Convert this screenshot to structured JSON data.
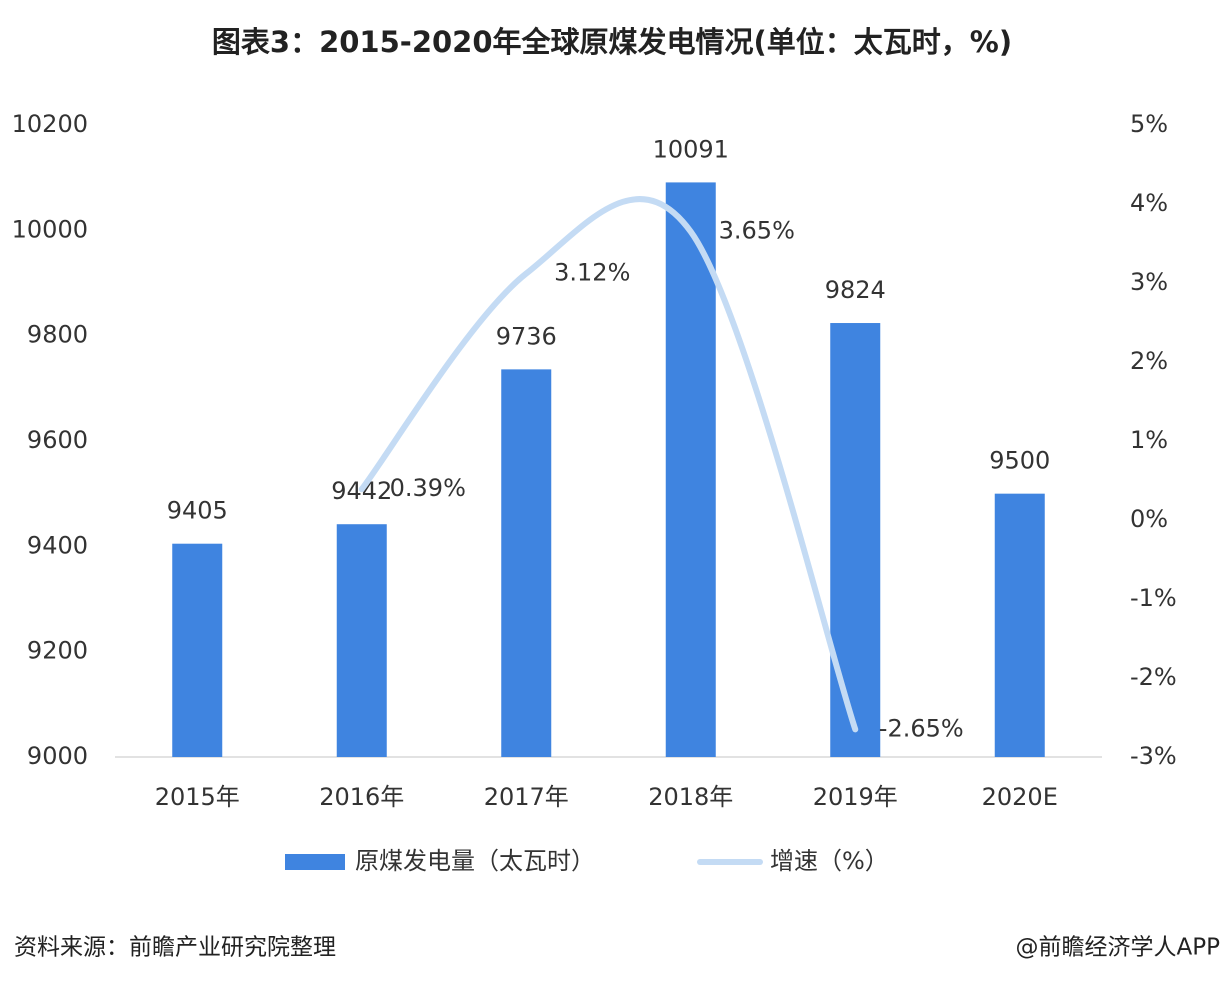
{
  "chart_data": {
    "type": "bar",
    "title": "图表3：2015-2020年全球原煤发电情况(单位：太瓦时，%)",
    "categories": [
      "2015年",
      "2016年",
      "2017年",
      "2018年",
      "2019年",
      "2020E"
    ],
    "series": [
      {
        "name": "原煤发电量（太瓦时）",
        "type": "bar",
        "color": "#3f84e0",
        "values": [
          9405,
          9442,
          9736,
          10091,
          9824,
          9500
        ]
      },
      {
        "name": "增速（%）",
        "type": "line",
        "axis": "y2",
        "color": "#c4dbf4",
        "values": [
          null,
          0.39,
          3.12,
          3.65,
          -2.65,
          null
        ],
        "value_labels": [
          null,
          "0.39%",
          "3.12%",
          "3.65%",
          "-2.65%",
          null
        ]
      }
    ],
    "ylim": [
      9000,
      10200
    ],
    "yticks": [
      9000,
      9200,
      9400,
      9600,
      9800,
      10000,
      10200
    ],
    "y2lim": [
      -3,
      5
    ],
    "y2ticks": [
      {
        "value": -3,
        "label": "-3%"
      },
      {
        "value": -2,
        "label": "-2%"
      },
      {
        "value": -1,
        "label": "-1%"
      },
      {
        "value": 0,
        "label": "0%"
      },
      {
        "value": 1,
        "label": "1%"
      },
      {
        "value": 2,
        "label": "2%"
      },
      {
        "value": 3,
        "label": "3%"
      },
      {
        "value": 4,
        "label": "4%"
      },
      {
        "value": 5,
        "label": "5%"
      }
    ],
    "legend": "bottom",
    "source": "资料来源：前瞻产业研究院整理",
    "credit": "@前瞻经济学人APP"
  }
}
